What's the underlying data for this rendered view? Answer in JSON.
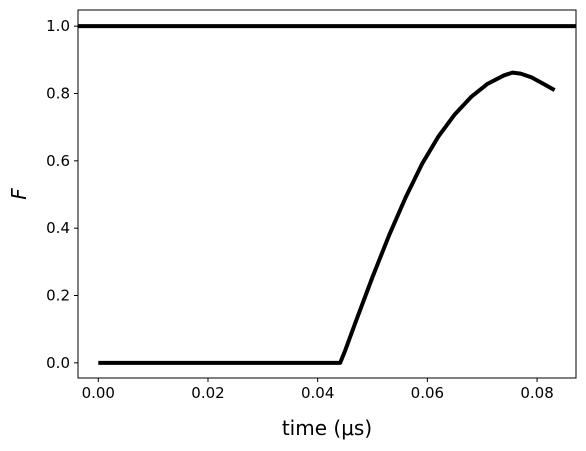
{
  "chart_data": {
    "type": "line",
    "xlabel": "time (μs)",
    "ylabel": "F",
    "xlim": [
      -0.0037,
      0.0871
    ],
    "ylim": [
      -0.045,
      1.048
    ],
    "xticks": [
      0.0,
      0.02,
      0.04,
      0.06,
      0.08
    ],
    "xtick_labels": [
      "0.00",
      "0.02",
      "0.04",
      "0.06",
      "0.08"
    ],
    "yticks": [
      0.0,
      0.2,
      0.4,
      0.6,
      0.8,
      1.0
    ],
    "ytick_labels": [
      "0.0",
      "0.2",
      "0.4",
      "0.6",
      "0.8",
      "1.0"
    ],
    "grid": false,
    "line_color": "#000000",
    "hlines": [
      {
        "y": 1.0
      }
    ],
    "series": [
      {
        "x": [
          0.0,
          0.01,
          0.02,
          0.03,
          0.0441,
          0.045,
          0.047,
          0.05,
          0.053,
          0.056,
          0.059,
          0.062,
          0.065,
          0.068,
          0.071,
          0.074,
          0.0755,
          0.077,
          0.079,
          0.081,
          0.0832
        ],
        "y": [
          0.0,
          0.0,
          0.0,
          0.0,
          0.0,
          0.036,
          0.125,
          0.255,
          0.378,
          0.49,
          0.59,
          0.672,
          0.738,
          0.79,
          0.829,
          0.854,
          0.862,
          0.859,
          0.848,
          0.83,
          0.81
        ]
      }
    ]
  }
}
